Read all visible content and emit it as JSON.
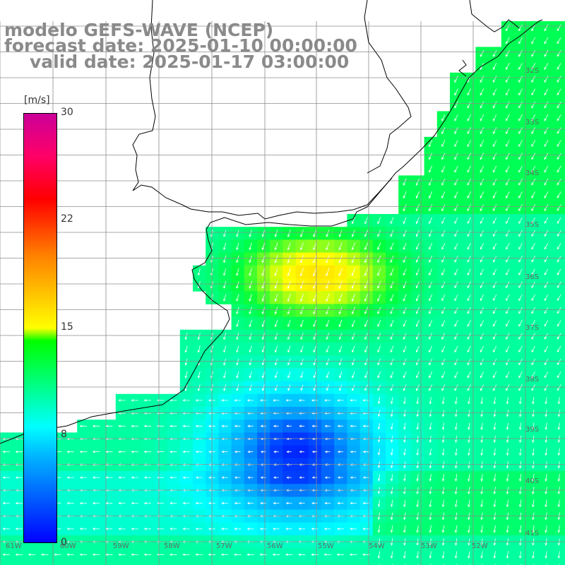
{
  "header": {
    "line1": "modelo GEFS-WAVE (NCEP)",
    "line2": "forecast date: 2025-01-10 00:00:00",
    "line3": "valid date: 2025-01-17 03:00:00"
  },
  "colorbar": {
    "unit": "[m/s]",
    "ticks": [
      "30",
      "22",
      "15",
      "8",
      "0"
    ],
    "colors": [
      "#0000ff",
      "#00b4ff",
      "#00ffff",
      "#00ff00",
      "#ffff00",
      "#ff8000",
      "#ff0000",
      "#cc0099"
    ]
  },
  "lat_labels": [
    "32S",
    "33S",
    "34S",
    "35S",
    "36S",
    "37S",
    "38S",
    "39S",
    "40S",
    "41S"
  ],
  "lon_labels": [
    "61W",
    "60W",
    "59W",
    "58W",
    "57W",
    "56W",
    "55W",
    "54W",
    "53W",
    "52W"
  ],
  "colors": {
    "land": "#ffffff",
    "grid": "#8c8c8c",
    "coast": "#000000",
    "arrow": "#ffffff"
  }
}
